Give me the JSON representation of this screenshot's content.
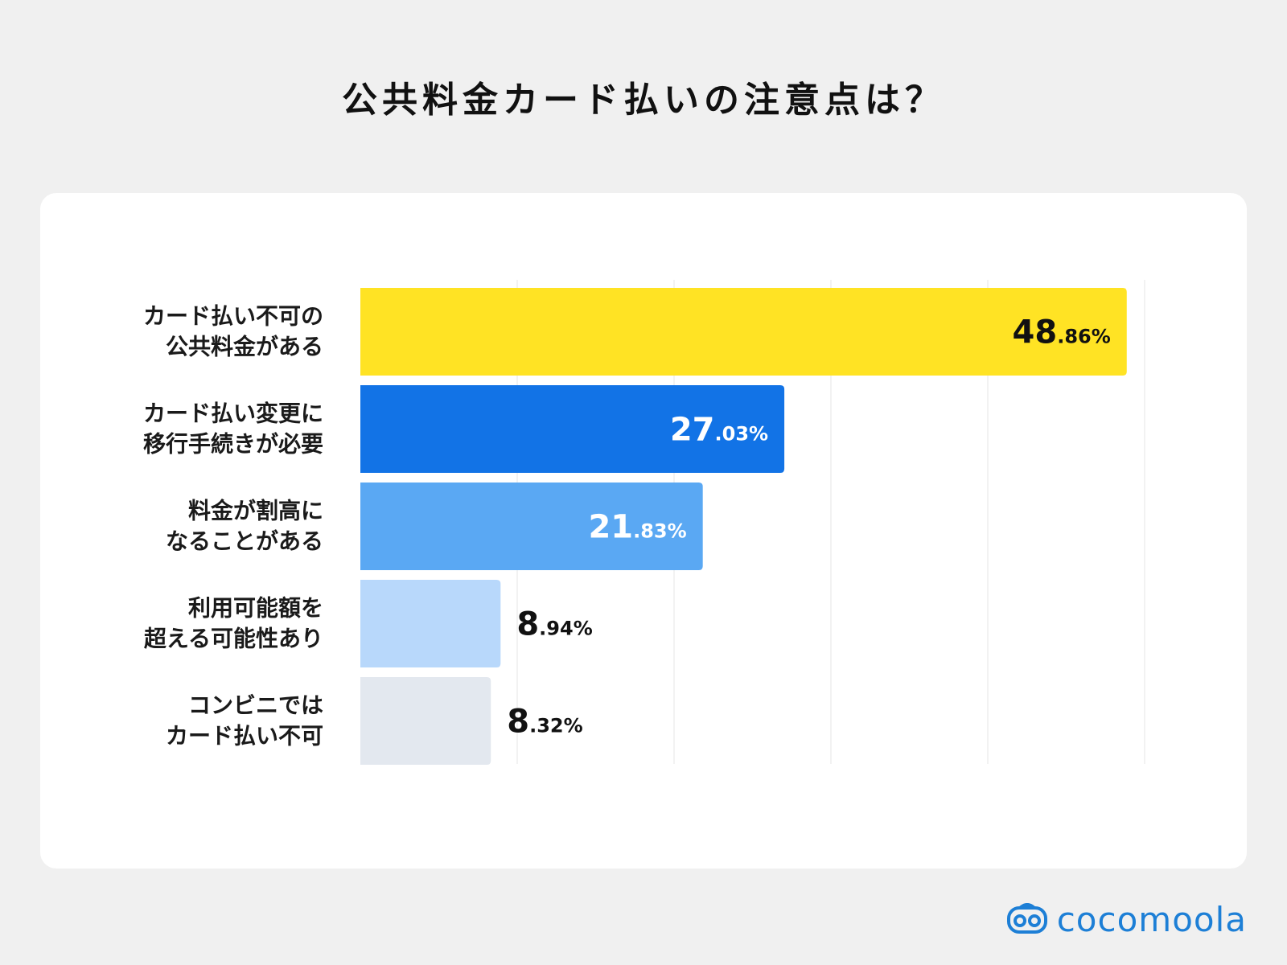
{
  "title": "公共料金カード払いの注意点は？",
  "brand": {
    "name": "cocomoola",
    "color": "#1d7fd6",
    "icon": "bus-icon"
  },
  "chart_data": {
    "type": "bar",
    "orientation": "horizontal",
    "title": "公共料金カード払いの注意点は？",
    "unit": "%",
    "xlim": [
      0,
      50
    ],
    "grid": true,
    "categories": [
      [
        "カード払い不可の",
        "公共料金がある"
      ],
      [
        "カード払い変更に",
        "移行手続きが必要"
      ],
      [
        "料金が割高に",
        "なることがある"
      ],
      [
        "利用可能額を",
        "超える可能性あり"
      ],
      [
        "コンビニでは",
        "カード払い不可"
      ]
    ],
    "values": [
      48.86,
      27.03,
      21.83,
      8.94,
      8.32
    ],
    "value_labels": [
      {
        "int": "48",
        "dec": ".86%"
      },
      {
        "int": "27",
        "dec": ".03%"
      },
      {
        "int": "21",
        "dec": ".83%"
      },
      {
        "int": "8",
        "dec": ".94%"
      },
      {
        "int": "8",
        "dec": ".32%"
      }
    ],
    "colors": [
      "#ffe324",
      "#1273e6",
      "#5aa8f3",
      "#b8d8fb",
      "#e3e8ef"
    ],
    "label_colors": [
      "#111111",
      "#ffffff",
      "#ffffff",
      "#111111",
      "#111111"
    ],
    "label_inside": [
      true,
      true,
      true,
      false,
      false
    ]
  }
}
